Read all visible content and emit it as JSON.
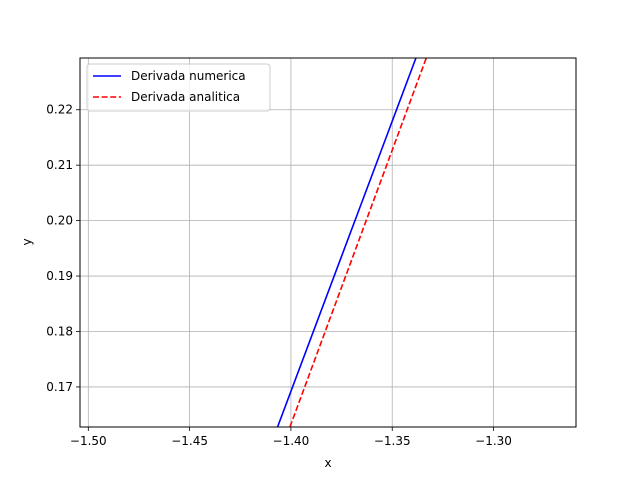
{
  "chart_data": {
    "type": "line",
    "title": "",
    "xlabel": "x",
    "ylabel": "y",
    "xlim": [
      -1.5041,
      -1.2593
    ],
    "ylim": [
      0.16277,
      0.22933
    ],
    "xticks": [
      -1.5,
      -1.45,
      -1.4,
      -1.35,
      -1.3
    ],
    "xtick_labels": [
      "−1.50",
      "−1.45",
      "−1.40",
      "−1.35",
      "−1.30"
    ],
    "yticks": [
      0.17,
      0.18,
      0.19,
      0.2,
      0.21,
      0.22
    ],
    "ytick_labels": [
      "0.17",
      "0.18",
      "0.19",
      "0.20",
      "0.21",
      "0.22"
    ],
    "grid": true,
    "legend_position": "top-left",
    "series": [
      {
        "name": "Derivada numerica",
        "color": "#0000ff",
        "style": "solid",
        "x": [
          -1.4066,
          -1.3383
        ],
        "y": [
          0.16277,
          0.22933
        ]
      },
      {
        "name": "Derivada analitica",
        "color": "#ff0000",
        "style": "dashed",
        "x": [
          -1.4005,
          -1.3332
        ],
        "y": [
          0.16277,
          0.22933
        ]
      }
    ]
  }
}
